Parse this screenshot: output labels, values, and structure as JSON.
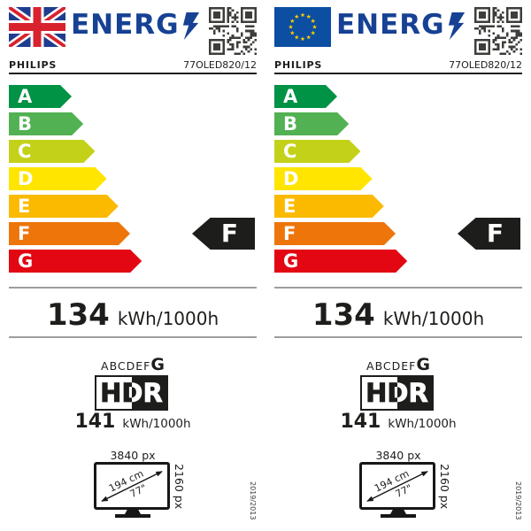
{
  "colors": {
    "brand_blue": "#164194",
    "text_ink": "#1d1d1b",
    "divider_gray": "#9d9d9c",
    "qr_dark": "#3d3d3b",
    "rating_arrow_black": "#1d1d1b"
  },
  "labels": [
    {
      "flag": "uk",
      "logo_text": "ENERG",
      "supplier": "PHILIPS",
      "model": "77OLED820/12",
      "scale": [
        {
          "grade": "A",
          "color": "#009245"
        },
        {
          "grade": "B",
          "color": "#52b153"
        },
        {
          "grade": "C",
          "color": "#c3d219"
        },
        {
          "grade": "D",
          "color": "#ffe500"
        },
        {
          "grade": "E",
          "color": "#fbba00"
        },
        {
          "grade": "F",
          "color": "#ed750a"
        },
        {
          "grade": "G",
          "color": "#e30613"
        }
      ],
      "rating": "F",
      "energy_sdr": {
        "value": "134",
        "unit": "kWh/1000h"
      },
      "hdr_scale": {
        "range": "ABCDEF",
        "max": "G"
      },
      "hdr_logo_text": "HDR",
      "energy_hdr": {
        "value": "141",
        "unit": "kWh/1000h"
      },
      "screen": {
        "horizontal": "3840 px",
        "vertical": "2160 px",
        "diagonal_cm": "194 cm",
        "diagonal_inch": "77\""
      },
      "regulation": "2019/2013"
    },
    {
      "flag": "eu",
      "logo_text": "ENERG",
      "supplier": "PHILIPS",
      "model": "77OLED820/12",
      "scale": [
        {
          "grade": "A",
          "color": "#009245"
        },
        {
          "grade": "B",
          "color": "#52b153"
        },
        {
          "grade": "C",
          "color": "#c3d219"
        },
        {
          "grade": "D",
          "color": "#ffe500"
        },
        {
          "grade": "E",
          "color": "#fbba00"
        },
        {
          "grade": "F",
          "color": "#ed750a"
        },
        {
          "grade": "G",
          "color": "#e30613"
        }
      ],
      "rating": "F",
      "energy_sdr": {
        "value": "134",
        "unit": "kWh/1000h"
      },
      "hdr_scale": {
        "range": "ABCDEF",
        "max": "G"
      },
      "hdr_logo_text": "HDR",
      "energy_hdr": {
        "value": "141",
        "unit": "kWh/1000h"
      },
      "screen": {
        "horizontal": "3840 px",
        "vertical": "2160 px",
        "diagonal_cm": "194 cm",
        "diagonal_inch": "77\""
      },
      "regulation": "2019/2013"
    }
  ]
}
